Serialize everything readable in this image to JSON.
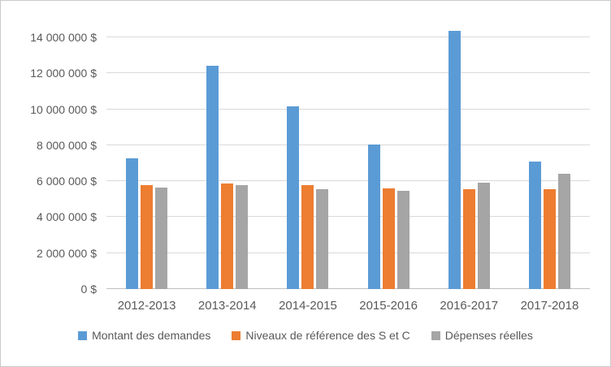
{
  "chart_data": {
    "type": "bar",
    "title": "",
    "xlabel": "",
    "ylabel": "",
    "categories": [
      "2012-2013",
      "2013-2014",
      "2014-2015",
      "2015-2016",
      "2016-2017",
      "2017-2018"
    ],
    "series": [
      {
        "name": "Montant des demandes",
        "color": "#5B9BD5",
        "values": [
          7250000,
          12400000,
          10150000,
          8050000,
          14350000,
          7100000
        ]
      },
      {
        "name": "Niveaux de référence des S et C",
        "color": "#ED7D31",
        "values": [
          5800000,
          5850000,
          5800000,
          5580000,
          5570000,
          5560000
        ]
      },
      {
        "name": "Dépenses réelles",
        "color": "#A5A5A5",
        "values": [
          5640000,
          5800000,
          5570000,
          5480000,
          5930000,
          6400000
        ]
      }
    ],
    "ylim": [
      0,
      14000000
    ],
    "ytick_step": 2000000,
    "ytick_suffix": " $",
    "grid": true,
    "gridline_color": "#D9D9D9",
    "axis_line_color": "#BFBFBF",
    "text_color": "#595959",
    "legend_position": "bottom"
  }
}
